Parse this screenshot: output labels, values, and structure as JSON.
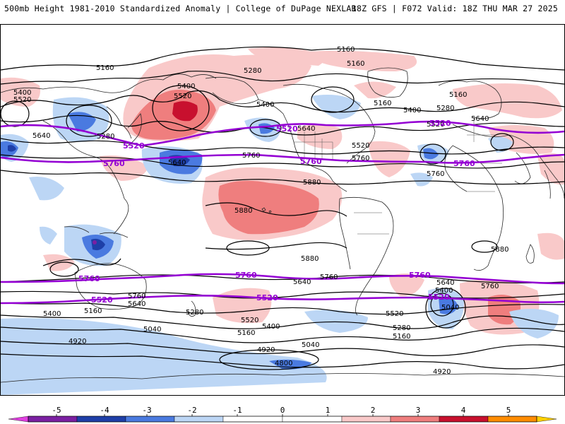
{
  "header": {
    "left": "500mb Height 1981-2010 Standardized Anomaly | College of DuPage NEXLAB",
    "right": "18Z GFS | F072 Valid: 18Z THU MAR 27 2025"
  },
  "colors": {
    "neg5": "#e040e0",
    "neg4": "#7b1fa2",
    "neg3": "#1e3fa8",
    "neg2": "#4a7ae0",
    "neg1": "#bcd6f5",
    "zero": "#ffffff",
    "pos1": "#f9c9c9",
    "pos2": "#ef7e7e",
    "pos3": "#c8102e",
    "pos4": "#ff8c00",
    "pos5": "#ffd000",
    "highlight": "#9400d3",
    "contour": "#000000",
    "coast": "#2a2a2a"
  },
  "colorbar": {
    "ticks": [
      "-5",
      "-4",
      "-3",
      "-2",
      "-1",
      "0",
      "1",
      "2",
      "3",
      "4",
      "5"
    ]
  },
  "contour_labels": [
    {
      "text": "5160"
    },
    {
      "text": "5160"
    },
    {
      "text": "5280"
    },
    {
      "text": "5160"
    },
    {
      "text": "5400"
    },
    {
      "text": "5520"
    },
    {
      "text": "5400"
    },
    {
      "text": "5520"
    },
    {
      "text": "5400"
    },
    {
      "text": "5160"
    },
    {
      "text": "5160"
    },
    {
      "text": "5280"
    },
    {
      "text": "5400"
    },
    {
      "text": "5640"
    },
    {
      "text": "5280"
    },
    {
      "text": "5640"
    },
    {
      "text": "5640"
    },
    {
      "text": "5520"
    },
    {
      "text": "5760"
    },
    {
      "text": "5640"
    },
    {
      "text": "5760"
    },
    {
      "text": "5880"
    },
    {
      "text": "5880"
    },
    {
      "text": "5880"
    },
    {
      "text": "5760"
    },
    {
      "text": "5880"
    },
    {
      "text": "5760"
    },
    {
      "text": "5760"
    },
    {
      "text": "5640"
    },
    {
      "text": "5640"
    },
    {
      "text": "5400"
    },
    {
      "text": "5760"
    },
    {
      "text": "5040"
    },
    {
      "text": "5400"
    },
    {
      "text": "5160"
    },
    {
      "text": "5640"
    },
    {
      "text": "5280"
    },
    {
      "text": "5520"
    },
    {
      "text": "5400"
    },
    {
      "text": "5040"
    },
    {
      "text": "5160"
    },
    {
      "text": "5520"
    },
    {
      "text": "5280"
    },
    {
      "text": "5160"
    },
    {
      "text": "4920"
    },
    {
      "text": "5040"
    },
    {
      "text": "4920"
    },
    {
      "text": "4800"
    },
    {
      "text": "4920"
    },
    {
      "text": "5520"
    }
  ],
  "highlight_labels": [
    {
      "text": "5520"
    },
    {
      "text": "5520"
    },
    {
      "text": "5520"
    },
    {
      "text": "5760"
    },
    {
      "text": "5760"
    },
    {
      "text": "5760"
    },
    {
      "text": "5760"
    },
    {
      "text": "5760"
    },
    {
      "text": "5760"
    },
    {
      "text": "5520"
    },
    {
      "text": "5520"
    },
    {
      "text": "5520"
    },
    {
      "text": "5520"
    }
  ]
}
